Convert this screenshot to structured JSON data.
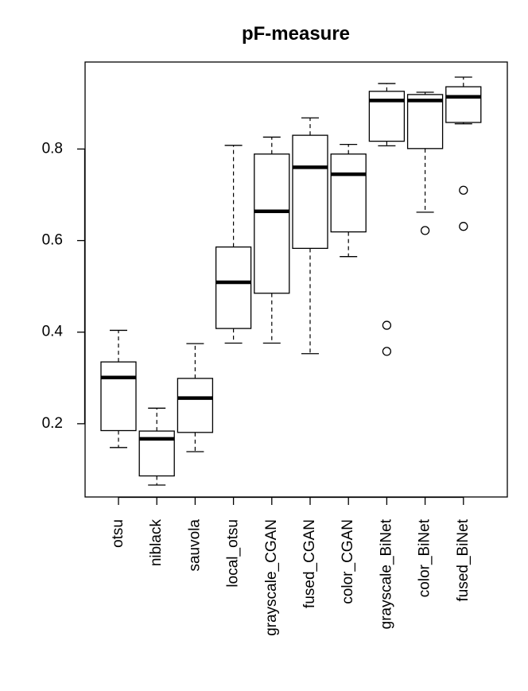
{
  "chart_data": {
    "type": "boxplot",
    "title": "pF-measure",
    "xlabel": "",
    "ylabel": "",
    "ylim": [
      0.04,
      0.99
    ],
    "yticks": [
      0.2,
      0.4,
      0.6,
      0.8
    ],
    "ytick_labels": [
      "0.2",
      "0.4",
      "0.6",
      "0.8"
    ],
    "grid": false,
    "categories": [
      "otsu",
      "niblack",
      "sauvola",
      "local_otsu",
      "grayscale_CGAN",
      "fused_CGAN",
      "color_CGAN",
      "grayscale_BiNet",
      "color_BiNet",
      "fused_BiNet"
    ],
    "boxes": [
      {
        "name": "otsu",
        "whisker_low": 0.148,
        "q1": 0.185,
        "median": 0.301,
        "q3": 0.335,
        "whisker_high": 0.404,
        "outliers": []
      },
      {
        "name": "niblack",
        "whisker_low": 0.066,
        "q1": 0.086,
        "median": 0.167,
        "q3": 0.184,
        "whisker_high": 0.234,
        "outliers": []
      },
      {
        "name": "sauvola",
        "whisker_low": 0.139,
        "q1": 0.181,
        "median": 0.256,
        "q3": 0.299,
        "whisker_high": 0.375,
        "outliers": []
      },
      {
        "name": "local_otsu",
        "whisker_low": 0.376,
        "q1": 0.408,
        "median": 0.509,
        "q3": 0.586,
        "whisker_high": 0.808,
        "outliers": []
      },
      {
        "name": "grayscale_CGAN",
        "whisker_low": 0.376,
        "q1": 0.485,
        "median": 0.664,
        "q3": 0.789,
        "whisker_high": 0.826,
        "outliers": []
      },
      {
        "name": "fused_CGAN",
        "whisker_low": 0.353,
        "q1": 0.583,
        "median": 0.76,
        "q3": 0.83,
        "whisker_high": 0.868,
        "outliers": []
      },
      {
        "name": "color_CGAN",
        "whisker_low": 0.565,
        "q1": 0.619,
        "median": 0.745,
        "q3": 0.789,
        "whisker_high": 0.81,
        "outliers": []
      },
      {
        "name": "grayscale_BiNet",
        "whisker_low": 0.807,
        "q1": 0.817,
        "median": 0.906,
        "q3": 0.926,
        "whisker_high": 0.943,
        "outliers": [
          0.415,
          0.358
        ]
      },
      {
        "name": "color_BiNet",
        "whisker_low": 0.662,
        "q1": 0.801,
        "median": 0.906,
        "q3": 0.919,
        "whisker_high": 0.924,
        "outliers": [
          0.622
        ]
      },
      {
        "name": "fused_BiNet",
        "whisker_low": 0.855,
        "q1": 0.858,
        "median": 0.914,
        "q3": 0.936,
        "whisker_high": 0.957,
        "outliers": [
          0.71,
          0.631
        ]
      }
    ]
  }
}
